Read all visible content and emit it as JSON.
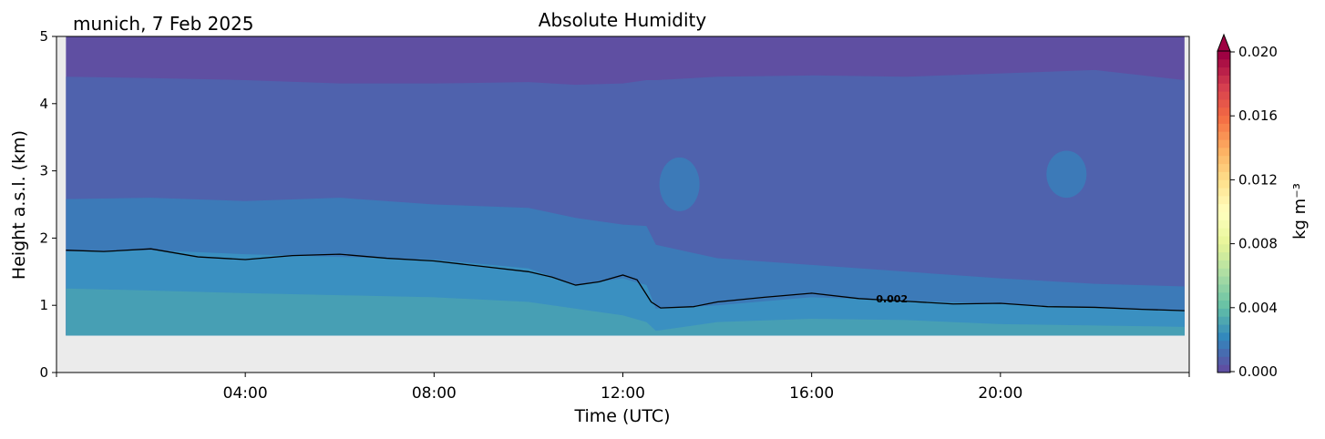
{
  "chart_data": {
    "type": "heatmap",
    "title": "Absolute Humidity",
    "location_date_label": "munich, 7 Feb 2025",
    "xlabel": "Time (UTC)",
    "ylabel": "Height a.s.l. (km)",
    "xlim_hours": [
      0,
      24
    ],
    "ylim_km": [
      0,
      5
    ],
    "x_ticks": [
      {
        "hour": 4,
        "label": "04:00"
      },
      {
        "hour": 8,
        "label": "08:00"
      },
      {
        "hour": 12,
        "label": "12:00"
      },
      {
        "hour": 16,
        "label": "16:00"
      },
      {
        "hour": 20,
        "label": "20:00"
      }
    ],
    "y_ticks": [
      {
        "value": 0,
        "label": "0"
      },
      {
        "value": 1,
        "label": "1"
      },
      {
        "value": 2,
        "label": "2"
      },
      {
        "value": 3,
        "label": "3"
      },
      {
        "value": 4,
        "label": "4"
      },
      {
        "value": 5,
        "label": "5"
      }
    ],
    "data_time_range_hours": [
      0.2,
      23.9
    ],
    "min_height_km": 0.55,
    "colorbar": {
      "label": "kg m⁻³",
      "range": [
        0.0,
        0.02
      ],
      "extend": "max",
      "ticks": [
        {
          "value": 0.0,
          "label": "0.000"
        },
        {
          "value": 0.004,
          "label": "0.004"
        },
        {
          "value": 0.008,
          "label": "0.008"
        },
        {
          "value": 0.012,
          "label": "0.012"
        },
        {
          "value": 0.016,
          "label": "0.016"
        },
        {
          "value": 0.02,
          "label": "0.020"
        }
      ],
      "colormap": "Spectral_r",
      "stops": [
        "#5e4fa2",
        "#3288bd",
        "#66c2a5",
        "#abdda4",
        "#e6f598",
        "#ffffbf",
        "#fee08b",
        "#fdae61",
        "#f46d43",
        "#d53e4f",
        "#9e0142"
      ]
    },
    "fill_bands": [
      {
        "level": "0.0030-0.0035",
        "color": "#479fb4"
      },
      {
        "level": "0.0020-0.0030",
        "color": "#3a90c1"
      },
      {
        "level": "0.0015-0.0020",
        "color": "#3c7ab8"
      },
      {
        "level": "0.0005-0.0015",
        "color": "#4f62ad"
      },
      {
        "level": "0.0000-0.0005",
        "color": "#5f4fa2"
      }
    ],
    "boundaries": {
      "time_hours": [
        0.2,
        2,
        4,
        6,
        8,
        10,
        11,
        12,
        12.5,
        12.7,
        14,
        16,
        18,
        20,
        22,
        23.9
      ],
      "band1_top_km": [
        1.25,
        1.22,
        1.18,
        1.15,
        1.12,
        1.05,
        0.95,
        0.85,
        0.75,
        0.62,
        0.75,
        0.8,
        0.78,
        0.72,
        0.7,
        0.68
      ],
      "band2_top_km": [
        1.8,
        1.82,
        1.76,
        1.72,
        1.68,
        1.55,
        1.3,
        1.4,
        1.3,
        0.95,
        1.0,
        1.12,
        1.07,
        1.02,
        0.97,
        0.92
      ],
      "band3_top_km": [
        2.58,
        2.6,
        2.55,
        2.6,
        2.5,
        2.45,
        2.3,
        2.2,
        2.18,
        1.9,
        1.7,
        1.6,
        1.5,
        1.4,
        1.32,
        1.28
      ],
      "band4_top_km": [
        4.4,
        4.38,
        4.35,
        4.3,
        4.3,
        4.32,
        4.28,
        4.3,
        4.35,
        4.35,
        4.4,
        4.42,
        4.4,
        4.45,
        4.5,
        4.35
      ]
    },
    "contour": {
      "level_label": "0.002",
      "label_time_hours": 17.7,
      "label_height_km": 1.1,
      "time_hours": [
        0.2,
        1,
        2,
        3,
        4,
        5,
        6,
        7,
        8,
        9,
        10,
        10.5,
        11,
        11.5,
        12,
        12.3,
        12.6,
        12.8,
        13.5,
        14,
        15,
        16,
        17,
        18,
        19,
        20,
        21,
        22,
        23,
        23.9
      ],
      "height_km": [
        1.82,
        1.8,
        1.84,
        1.72,
        1.68,
        1.74,
        1.76,
        1.7,
        1.66,
        1.58,
        1.5,
        1.42,
        1.3,
        1.35,
        1.45,
        1.38,
        1.05,
        0.96,
        0.98,
        1.05,
        1.12,
        1.18,
        1.1,
        1.06,
        1.02,
        1.03,
        0.98,
        0.97,
        0.94,
        0.92
      ]
    },
    "patches": [
      {
        "time_center_hours": 13.2,
        "height_bottom_km": 2.4,
        "height_top_km": 3.2,
        "color": "#3c7ab8"
      },
      {
        "time_center_hours": 21.4,
        "height_bottom_km": 2.6,
        "height_top_km": 3.3,
        "color": "#3c7ab8"
      }
    ]
  }
}
